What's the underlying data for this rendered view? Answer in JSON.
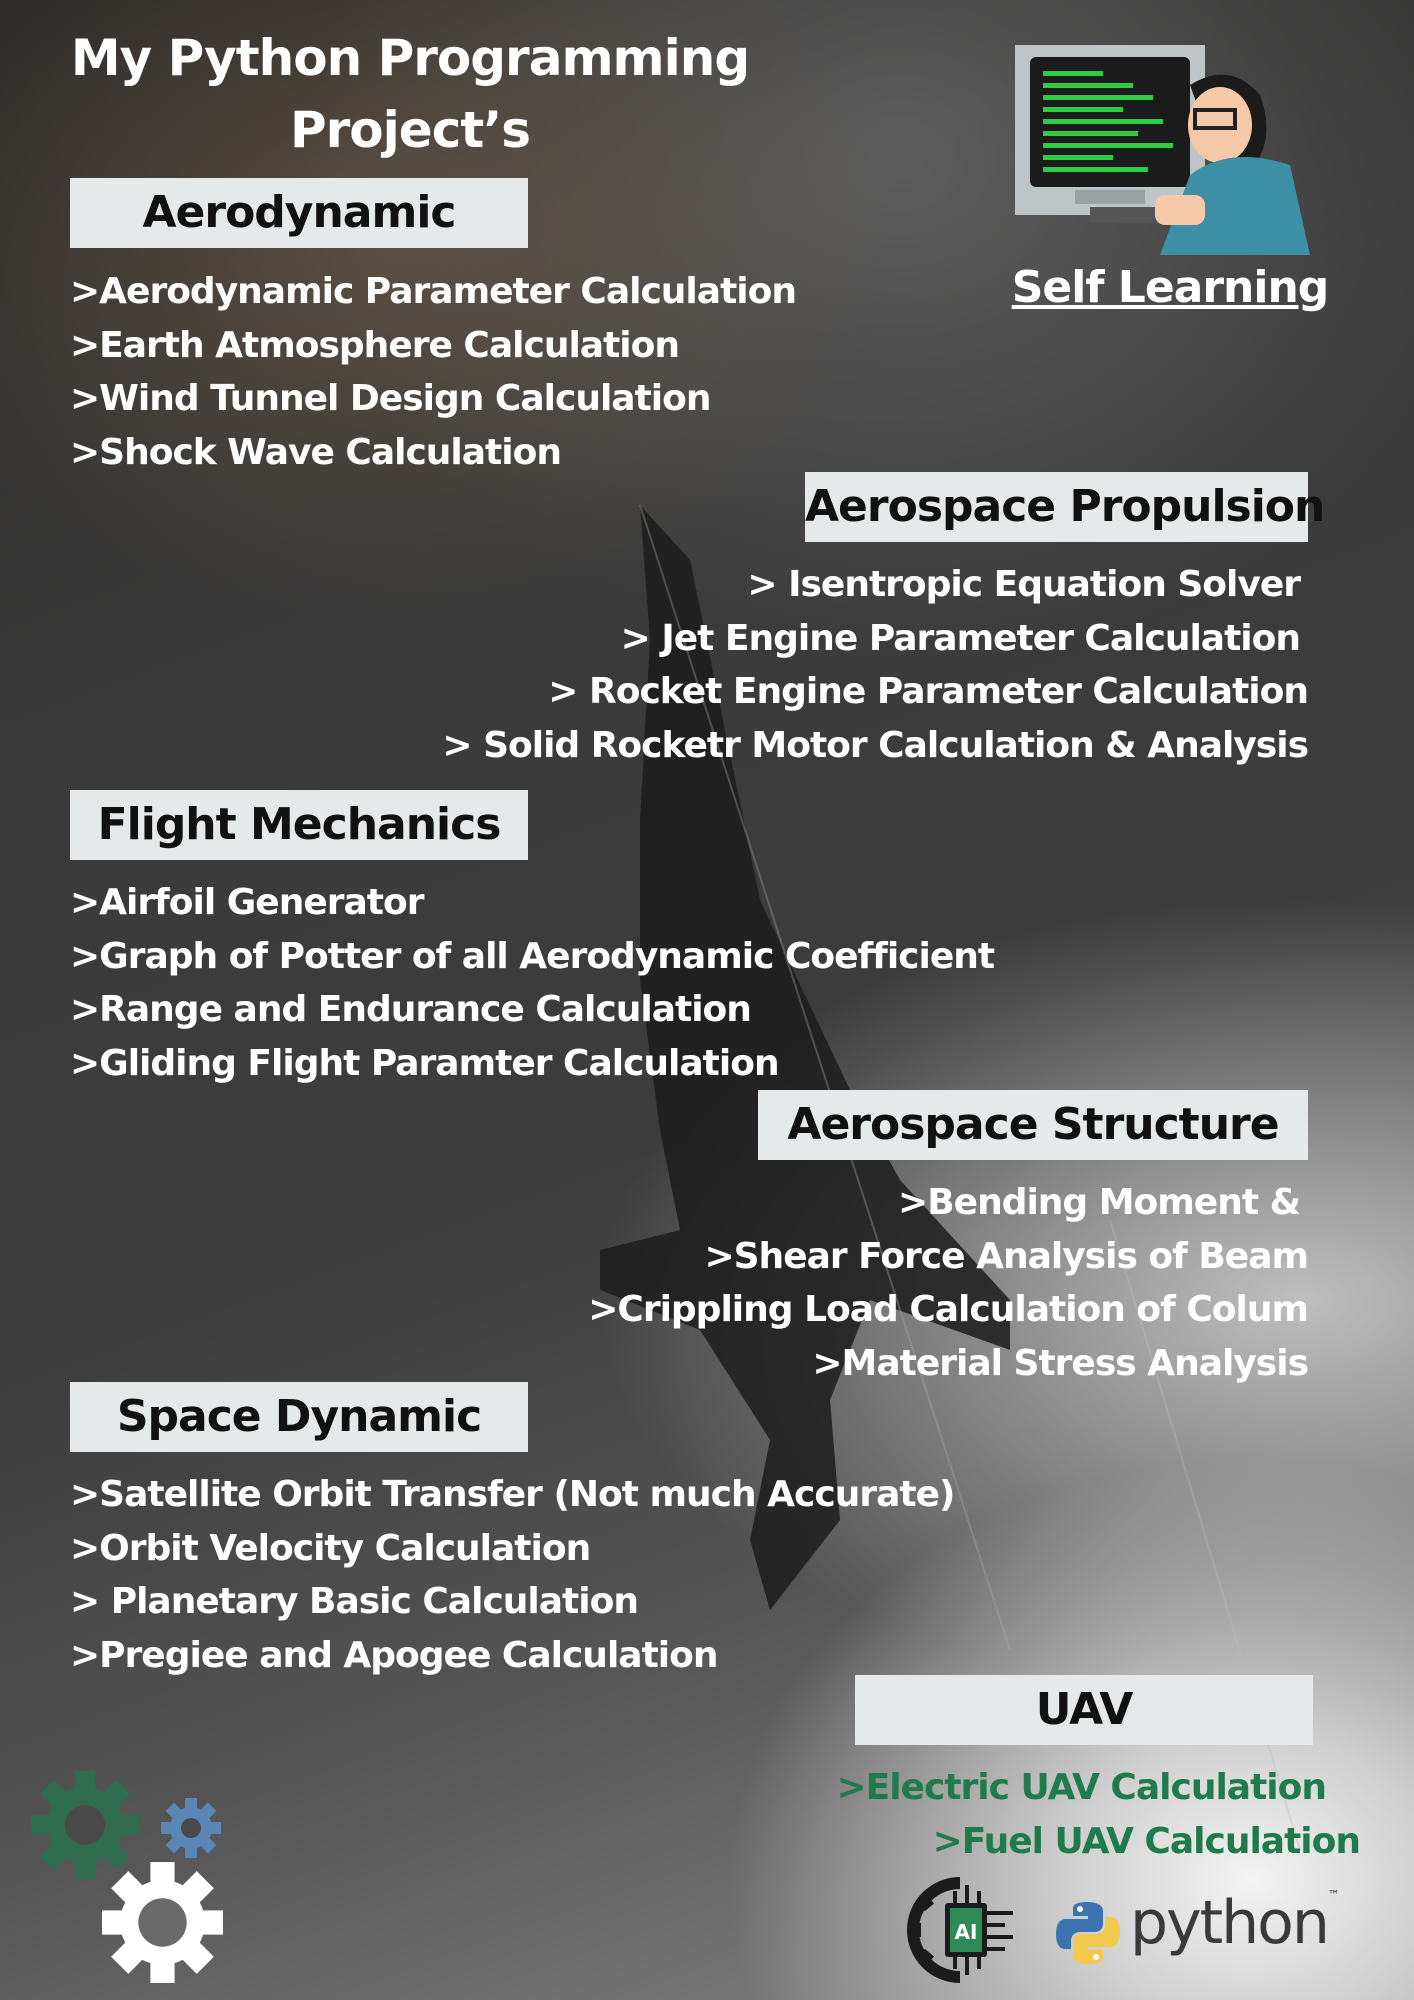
{
  "title": "My Python Programming Project’s",
  "self_learning": "Self Learning",
  "sections": {
    "aerodynamic": {
      "heading": "Aerodynamic",
      "items": [
        ">Aerodynamic Parameter Calculation",
        ">Earth Atmosphere Calculation",
        ">Wind Tunnel Design Calculation",
        ">Shock Wave Calculation"
      ]
    },
    "propulsion": {
      "heading": "Aerospace Propulsion",
      "items": [
        "> Isentropic Equation Solver",
        "> Jet Engine Parameter Calculation",
        "> Rocket Engine Parameter Calculation",
        "> Solid Rocketr Motor Calculation & Analysis"
      ]
    },
    "flight": {
      "heading": "Flight Mechanics",
      "items": [
        ">Airfoil Generator",
        ">Graph of Potter of all Aerodynamic Coefficient",
        ">Range and Endurance Calculation",
        ">Gliding Flight Paramter Calculation"
      ]
    },
    "structure": {
      "heading": "Aerospace Structure",
      "items": [
        ">Bending Moment &",
        ">Shear Force Analysis of Beam",
        ">Crippling Load Calculation of Colum",
        ">Material Stress Analysis"
      ]
    },
    "space": {
      "heading": "Space Dynamic",
      "items": [
        ">Satellite Orbit Transfer (Not much Accurate)",
        ">Orbit Velocity Calculation",
        "> Planetary Basic Calculation",
        ">Pregiee and Apogee Calculation"
      ]
    },
    "uav": {
      "heading": "UAV",
      "items": [
        ">Electric UAV Calculation",
        ">Fuel UAV Calculation"
      ]
    }
  },
  "logos": {
    "ai_chip_text": "AI",
    "python_text": "python",
    "python_tm": "™"
  },
  "colors": {
    "box_bg": "#e6e9e9",
    "uav_text": "#1f7a4c",
    "gear_green": "#2e6b4f",
    "gear_blue": "#5b86b8",
    "python_blue": "#3b72b0",
    "python_yellow": "#f2c94c"
  },
  "icons": [
    "programmer-computer-icon",
    "gear-icon",
    "ai-chip-icon",
    "python-logo-icon"
  ]
}
